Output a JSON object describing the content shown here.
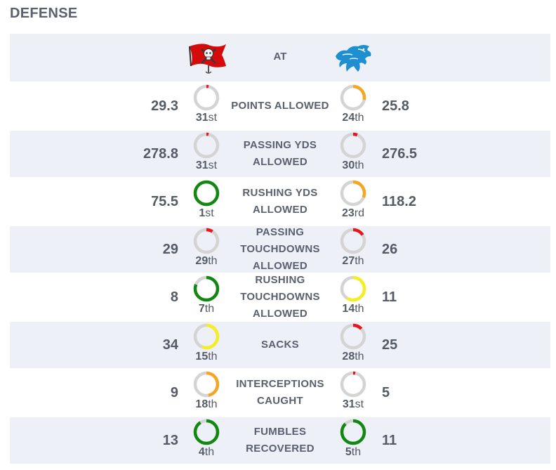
{
  "section_title": "DEFENSE",
  "header": {
    "at_label": "AT",
    "away_logo_icon": "buccaneers-flag-logo-icon",
    "home_logo_icon": "lions-logo-icon"
  },
  "colors": {
    "track": "#d4d4d4",
    "red": "#e8161b",
    "orange": "#f5a623",
    "yellow": "#f5ee21",
    "green": "#128712"
  },
  "stats": [
    {
      "label": "POINTS ALLOWED",
      "away_value": "29.3",
      "away_rank": "31",
      "away_suffix": "st",
      "away_fraction": 0.03,
      "away_color": "red",
      "home_value": "25.8",
      "home_rank": "24",
      "home_suffix": "th",
      "home_fraction": 0.28,
      "home_color": "orange"
    },
    {
      "label": "PASSING YDS ALLOWED",
      "away_value": "278.8",
      "away_rank": "31",
      "away_suffix": "st",
      "away_fraction": 0.03,
      "away_color": "red",
      "home_value": "276.5",
      "home_rank": "30",
      "home_suffix": "th",
      "home_fraction": 0.06,
      "home_color": "red"
    },
    {
      "label": "RUSHING YDS ALLOWED",
      "away_value": "75.5",
      "away_rank": "1",
      "away_suffix": "st",
      "away_fraction": 1.0,
      "away_color": "green",
      "home_value": "118.2",
      "home_rank": "23",
      "home_suffix": "rd",
      "home_fraction": 0.31,
      "home_color": "orange"
    },
    {
      "label": "PASSING TOUCHDOWNS ALLOWED",
      "away_value": "29",
      "away_rank": "29",
      "away_suffix": "th",
      "away_fraction": 0.09,
      "away_color": "red",
      "home_value": "26",
      "home_rank": "27",
      "home_suffix": "th",
      "home_fraction": 0.16,
      "home_color": "red"
    },
    {
      "label": "RUSHING TOUCHDOWNS ALLOWED",
      "away_value": "8",
      "away_rank": "7",
      "away_suffix": "th",
      "away_fraction": 0.81,
      "away_color": "green",
      "home_value": "11",
      "home_rank": "14",
      "home_suffix": "th",
      "home_fraction": 0.59,
      "home_color": "yellow"
    },
    {
      "label": "SACKS",
      "away_value": "34",
      "away_rank": "15",
      "away_suffix": "th",
      "away_fraction": 0.56,
      "away_color": "yellow",
      "home_value": "25",
      "home_rank": "28",
      "home_suffix": "th",
      "home_fraction": 0.13,
      "home_color": "red"
    },
    {
      "label": "INTERCEPTIONS CAUGHT",
      "away_value": "9",
      "away_rank": "18",
      "away_suffix": "th",
      "away_fraction": 0.47,
      "away_color": "orange",
      "home_value": "5",
      "home_rank": "31",
      "home_suffix": "st",
      "home_fraction": 0.03,
      "home_color": "red"
    },
    {
      "label": "FUMBLES RECOVERED",
      "away_value": "13",
      "away_rank": "4",
      "away_suffix": "th",
      "away_fraction": 0.91,
      "away_color": "green",
      "home_value": "11",
      "home_rank": "5",
      "home_suffix": "th",
      "home_fraction": 0.88,
      "home_color": "green"
    }
  ]
}
